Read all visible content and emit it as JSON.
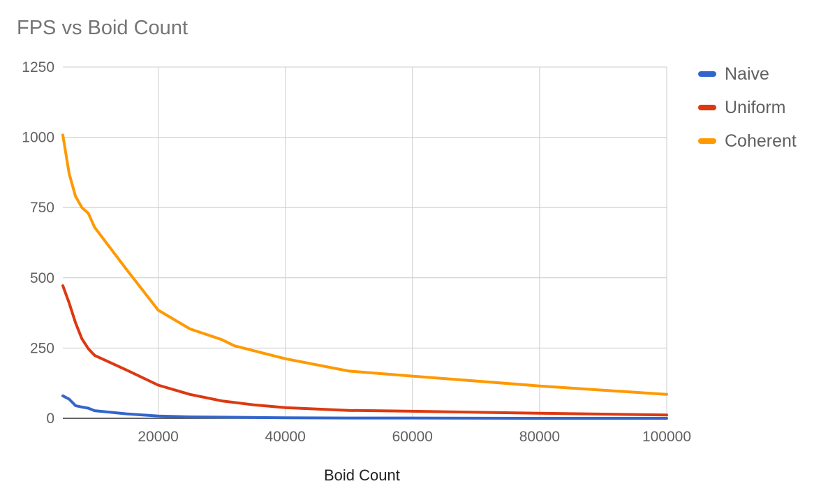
{
  "chart_data": {
    "type": "line",
    "title": "FPS vs Boid Count",
    "xlabel": "Boid Count",
    "ylabel": "",
    "xlim": [
      5000,
      100000
    ],
    "ylim": [
      0,
      1250
    ],
    "x_ticks": [
      "20000",
      "40000",
      "60000",
      "80000",
      "100000"
    ],
    "y_ticks": [
      "0",
      "250",
      "500",
      "750",
      "1000",
      "1250"
    ],
    "grid": true,
    "legend_position": "right",
    "series": [
      {
        "name": "Naive",
        "color": "#3366cc",
        "points": [
          [
            5000,
            80
          ],
          [
            6000,
            68
          ],
          [
            7000,
            45
          ],
          [
            8000,
            40
          ],
          [
            9000,
            36
          ],
          [
            10000,
            27
          ],
          [
            15000,
            16
          ],
          [
            20000,
            8
          ],
          [
            25000,
            5
          ],
          [
            30000,
            4
          ],
          [
            40000,
            2
          ],
          [
            50000,
            1
          ],
          [
            60000,
            1
          ],
          [
            80000,
            0
          ],
          [
            100000,
            0
          ]
        ]
      },
      {
        "name": "Uniform",
        "color": "#dc3912",
        "points": [
          [
            5000,
            472
          ],
          [
            6000,
            410
          ],
          [
            7000,
            340
          ],
          [
            8000,
            283
          ],
          [
            9000,
            248
          ],
          [
            10000,
            224
          ],
          [
            15000,
            172
          ],
          [
            20000,
            118
          ],
          [
            25000,
            85
          ],
          [
            30000,
            62
          ],
          [
            35000,
            48
          ],
          [
            40000,
            38
          ],
          [
            50000,
            28
          ],
          [
            60000,
            25
          ],
          [
            80000,
            18
          ],
          [
            100000,
            12
          ]
        ]
      },
      {
        "name": "Coherent",
        "color": "#ff9900",
        "points": [
          [
            5000,
            1008
          ],
          [
            6000,
            870
          ],
          [
            7000,
            790
          ],
          [
            8000,
            750
          ],
          [
            9000,
            730
          ],
          [
            10000,
            680
          ],
          [
            15000,
            530
          ],
          [
            20000,
            385
          ],
          [
            25000,
            318
          ],
          [
            30000,
            280
          ],
          [
            32000,
            258
          ],
          [
            40000,
            212
          ],
          [
            50000,
            168
          ],
          [
            60000,
            150
          ],
          [
            80000,
            115
          ],
          [
            100000,
            85
          ]
        ]
      }
    ]
  }
}
